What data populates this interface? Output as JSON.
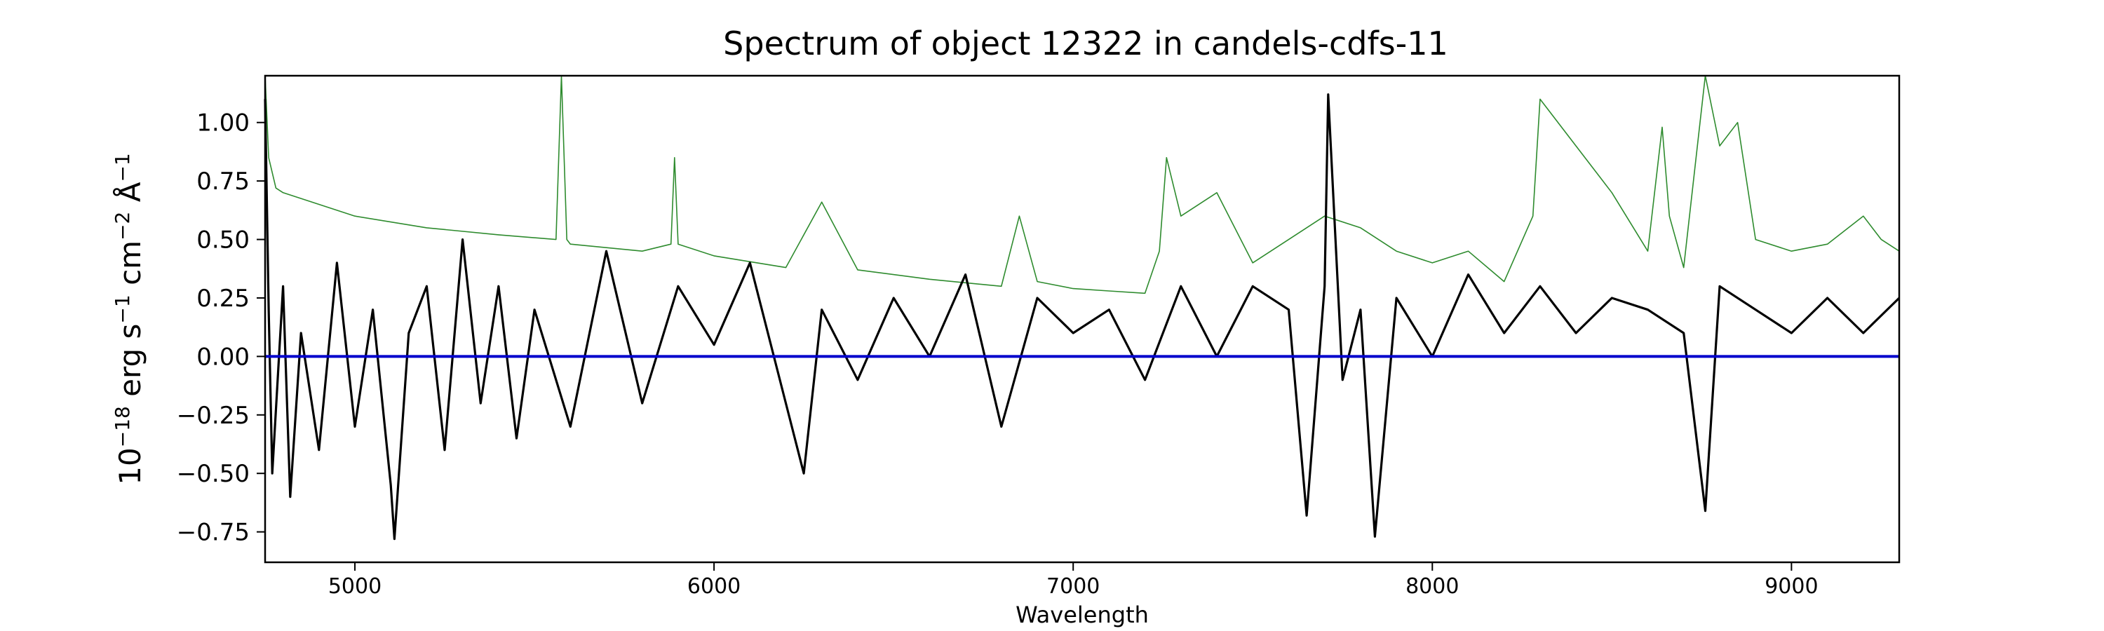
{
  "chart_data": {
    "type": "line",
    "title": "Spectrum of object 12322 in candels-cdfs-11",
    "xlabel": "Wavelength",
    "ylabel": {
      "base": "10",
      "exp1": "−18",
      "unit_erg": " erg s",
      "exp2": "−1",
      "unit_cm": " cm",
      "exp3": "−2",
      "unit_a": " Å",
      "exp4": "−1"
    },
    "xlim": [
      4750,
      9300
    ],
    "ylim": [
      -0.88,
      1.2
    ],
    "x_ticks": [
      5000,
      6000,
      7000,
      8000,
      9000
    ],
    "x_tick_labels": [
      "5000",
      "6000",
      "7000",
      "8000",
      "9000"
    ],
    "y_ticks": [
      1.0,
      0.75,
      0.5,
      0.25,
      0.0,
      -0.25,
      -0.5,
      -0.75
    ],
    "y_tick_labels": [
      "1.00",
      "0.75",
      "0.50",
      "0.25",
      "0.00",
      "−0.25",
      "−0.50",
      "−0.75"
    ],
    "grid": false,
    "colors": {
      "flux": "#000000",
      "error": "#2e8b2e",
      "zero": "#0000cc"
    },
    "series": [
      {
        "key": "flux",
        "x": [
          4750,
          4760,
          4770,
          4800,
          4820,
          4850,
          4900,
          4950,
          5000,
          5050,
          5100,
          5110,
          5150,
          5200,
          5250,
          5300,
          5350,
          5400,
          5450,
          5500,
          5600,
          5700,
          5800,
          5900,
          6000,
          6100,
          6200,
          6250,
          6300,
          6400,
          6500,
          6600,
          6700,
          6800,
          6900,
          7000,
          7100,
          7200,
          7300,
          7400,
          7500,
          7600,
          7650,
          7700,
          7710,
          7750,
          7800,
          7840,
          7900,
          8000,
          8100,
          8200,
          8300,
          8400,
          8500,
          8600,
          8700,
          8760,
          8800,
          8900,
          9000,
          9100,
          9200,
          9300
        ],
        "y": [
          1.1,
          0.2,
          -0.5,
          0.3,
          -0.6,
          0.1,
          -0.4,
          0.4,
          -0.3,
          0.2,
          -0.55,
          -0.78,
          0.1,
          0.3,
          -0.4,
          0.5,
          -0.2,
          0.3,
          -0.35,
          0.2,
          -0.3,
          0.45,
          -0.2,
          0.3,
          0.05,
          0.4,
          -0.2,
          -0.5,
          0.2,
          -0.1,
          0.25,
          0.0,
          0.35,
          -0.3,
          0.25,
          0.1,
          0.2,
          -0.1,
          0.3,
          0.0,
          0.3,
          0.2,
          -0.68,
          0.3,
          1.12,
          -0.1,
          0.2,
          -0.77,
          0.25,
          0.0,
          0.35,
          0.1,
          0.3,
          0.1,
          0.25,
          0.2,
          0.1,
          -0.66,
          0.3,
          0.2,
          0.1,
          0.25,
          0.1,
          0.25
        ]
      },
      {
        "key": "error",
        "x": [
          4750,
          4760,
          4780,
          4800,
          4900,
          5000,
          5200,
          5400,
          5560,
          5575,
          5590,
          5600,
          5800,
          5880,
          5890,
          5900,
          6000,
          6200,
          6300,
          6400,
          6600,
          6800,
          6850,
          6900,
          7000,
          7100,
          7200,
          7240,
          7260,
          7300,
          7400,
          7500,
          7600,
          7700,
          7800,
          7900,
          8000,
          8100,
          8200,
          8280,
          8300,
          8400,
          8500,
          8600,
          8640,
          8660,
          8700,
          8760,
          8800,
          8850,
          8900,
          9000,
          9100,
          9200,
          9250,
          9300
        ],
        "y": [
          1.2,
          0.85,
          0.72,
          0.7,
          0.65,
          0.6,
          0.55,
          0.52,
          0.5,
          1.2,
          0.5,
          0.48,
          0.45,
          0.48,
          0.85,
          0.48,
          0.43,
          0.38,
          0.66,
          0.37,
          0.33,
          0.3,
          0.6,
          0.32,
          0.29,
          0.28,
          0.27,
          0.45,
          0.85,
          0.6,
          0.7,
          0.4,
          0.5,
          0.6,
          0.55,
          0.45,
          0.4,
          0.45,
          0.32,
          0.6,
          1.1,
          0.9,
          0.7,
          0.45,
          0.98,
          0.6,
          0.38,
          1.2,
          0.9,
          1.0,
          0.5,
          0.45,
          0.48,
          0.6,
          0.5,
          0.45
        ]
      },
      {
        "key": "zero",
        "x": [
          4750,
          9300
        ],
        "y": [
          0.0,
          0.0
        ]
      }
    ]
  }
}
